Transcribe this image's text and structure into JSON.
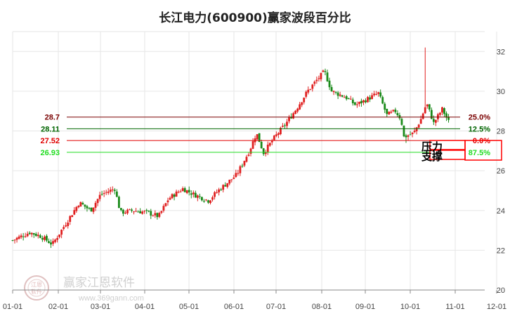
{
  "chart_data": {
    "type": "candlestick",
    "title": "长江电力(600900)赢家波段百分比",
    "y_ticks": [
      20,
      22,
      24,
      26,
      28,
      30,
      32
    ],
    "ylim": [
      20,
      33
    ],
    "x_ticks": [
      "01-01",
      "02-01",
      "03-01",
      "04-01",
      "05-01",
      "06-01",
      "07-01",
      "08-01",
      "09-01",
      "10-01",
      "11-01",
      "12-01"
    ],
    "grid": true,
    "up_color": "#e02020",
    "down_color": "#1a8a1a",
    "anchors": [
      {
        "d": 0,
        "p": 22.5
      },
      {
        "d": 12,
        "p": 22.9
      },
      {
        "d": 20,
        "p": 22.7
      },
      {
        "d": 28,
        "p": 22.3
      },
      {
        "d": 38,
        "p": 23.4
      },
      {
        "d": 47,
        "p": 24.4
      },
      {
        "d": 55,
        "p": 24.0
      },
      {
        "d": 62,
        "p": 24.8
      },
      {
        "d": 72,
        "p": 25.1
      },
      {
        "d": 76,
        "p": 23.9
      },
      {
        "d": 85,
        "p": 24.0
      },
      {
        "d": 95,
        "p": 23.9
      },
      {
        "d": 103,
        "p": 23.7
      },
      {
        "d": 110,
        "p": 24.6
      },
      {
        "d": 120,
        "p": 25.1
      },
      {
        "d": 128,
        "p": 24.8
      },
      {
        "d": 138,
        "p": 24.5
      },
      {
        "d": 145,
        "p": 25.0
      },
      {
        "d": 158,
        "p": 25.8
      },
      {
        "d": 167,
        "p": 27.0
      },
      {
        "d": 172,
        "p": 27.9
      },
      {
        "d": 177,
        "p": 26.9
      },
      {
        "d": 185,
        "p": 27.7
      },
      {
        "d": 193,
        "p": 28.4
      },
      {
        "d": 200,
        "p": 29.1
      },
      {
        "d": 208,
        "p": 30.0
      },
      {
        "d": 215,
        "p": 30.6
      },
      {
        "d": 220,
        "p": 31.0
      },
      {
        "d": 225,
        "p": 30.0
      },
      {
        "d": 235,
        "p": 29.7
      },
      {
        "d": 242,
        "p": 29.3
      },
      {
        "d": 250,
        "p": 29.6
      },
      {
        "d": 258,
        "p": 29.9
      },
      {
        "d": 264,
        "p": 28.8
      },
      {
        "d": 270,
        "p": 29.0
      },
      {
        "d": 274,
        "p": 28.6
      },
      {
        "d": 276,
        "p": 27.7
      },
      {
        "d": 283,
        "p": 27.9
      },
      {
        "d": 288,
        "p": 28.6
      },
      {
        "d": 292,
        "p": 29.4
      },
      {
        "d": 297,
        "p": 28.4
      },
      {
        "d": 303,
        "p": 29.1
      },
      {
        "d": 308,
        "p": 28.4
      }
    ],
    "spikes": [
      {
        "d": 278,
        "p": 27.4
      },
      {
        "d": 289,
        "p": 30.4
      },
      {
        "d": 291,
        "p": 32.2
      }
    ],
    "levels": [
      {
        "price": "28.7",
        "value": 28.7,
        "percent": "25.0%",
        "color": "#7a0000"
      },
      {
        "price": "28.11",
        "value": 28.11,
        "percent": "12.5%",
        "color": "#006400"
      },
      {
        "price": "27.52",
        "value": 27.52,
        "percent": "0.0%",
        "color": "#e00000"
      },
      {
        "price": "26.93",
        "value": 26.93,
        "percent": "87.5%",
        "color": "#22dd22"
      }
    ],
    "tags": {
      "resistance": "压力",
      "support": "支撑"
    }
  },
  "watermark": {
    "text": "赢家江恩软件",
    "url": "www.369gann.com",
    "logo_top": "江恩",
    "logo_bottom": "软件"
  }
}
